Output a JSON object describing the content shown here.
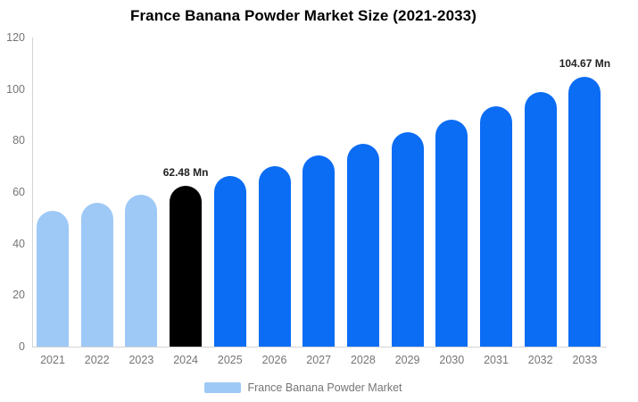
{
  "title": "France Banana Powder Market Size (2021-2033)",
  "legend": {
    "label": "France Banana Powder Market",
    "swatch_color": "#9ec9f6"
  },
  "chart_data": {
    "type": "bar",
    "title": "France Banana Powder Market Size (2021-2033)",
    "categories": [
      "2021",
      "2022",
      "2023",
      "2024",
      "2025",
      "2026",
      "2027",
      "2028",
      "2029",
      "2030",
      "2031",
      "2032",
      "2033"
    ],
    "values": [
      52.6,
      55.7,
      59.0,
      62.48,
      66.2,
      70.1,
      74.2,
      78.6,
      83.2,
      88.2,
      93.4,
      98.9,
      104.67
    ],
    "unit": "Mn",
    "xlabel": "",
    "ylabel": "",
    "ylim": [
      0,
      120
    ],
    "yticks": [
      0,
      20,
      40,
      60,
      80,
      100,
      120
    ],
    "grid": false,
    "legend_position": "bottom",
    "bar_color_roles": [
      "historical",
      "historical",
      "historical",
      "current",
      "forecast",
      "forecast",
      "forecast",
      "forecast",
      "forecast",
      "forecast",
      "forecast",
      "forecast",
      "forecast"
    ],
    "colors": {
      "historical": "#9ec9f6",
      "current": "#000000",
      "forecast": "#0b6cf4"
    },
    "annotations": [
      {
        "category": "2024",
        "text": "62.48 Mn"
      },
      {
        "category": "2033",
        "text": "104.67 Mn"
      }
    ]
  }
}
